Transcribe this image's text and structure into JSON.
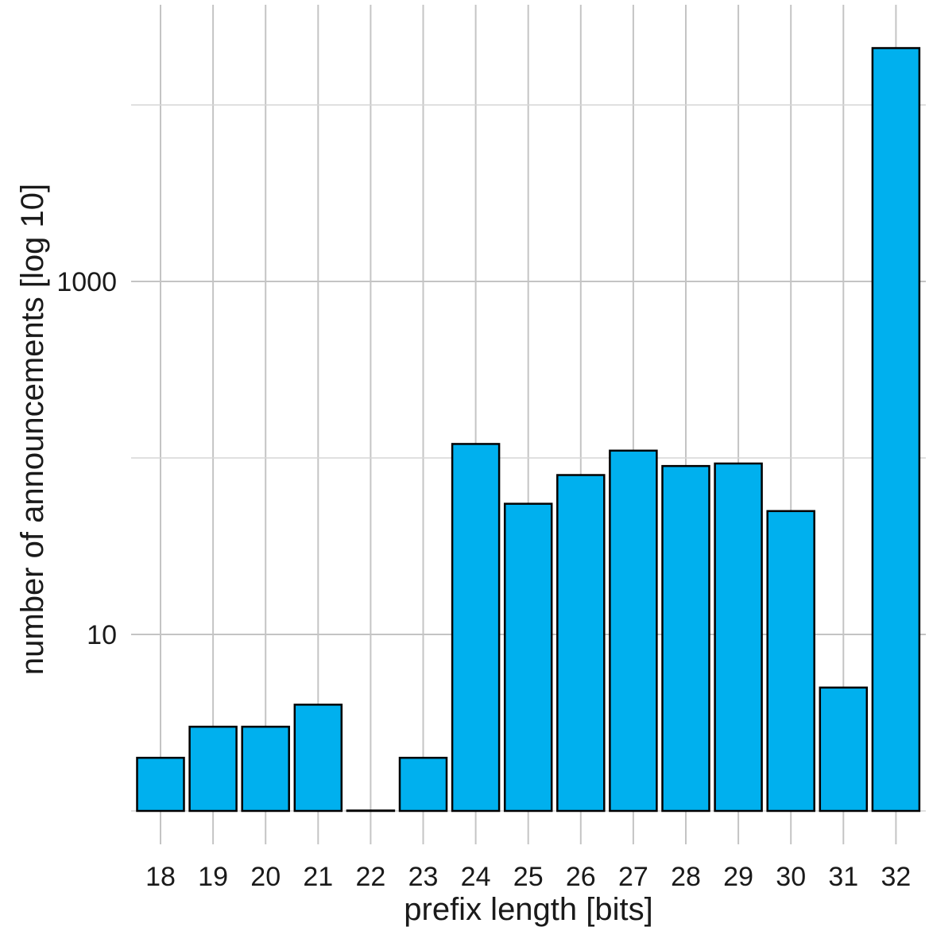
{
  "chart_data": {
    "type": "bar",
    "title": "",
    "xlabel": "prefix length [bits]",
    "ylabel": "number of announcements [log 10]",
    "y_scale": "log10",
    "ylim": [
      1,
      40000
    ],
    "y_major_ticks": [
      10,
      1000
    ],
    "y_tick_labels": [
      "10",
      "1000"
    ],
    "grid": true,
    "legend": "none",
    "bar_color": "#00b0ee",
    "bar_outline_color": "#000000",
    "categories": [
      "18",
      "19",
      "20",
      "21",
      "22",
      "23",
      "24",
      "25",
      "26",
      "27",
      "28",
      "29",
      "30",
      "31",
      "32"
    ],
    "values": [
      2,
      3,
      3,
      4,
      1,
      2,
      120,
      55,
      80,
      110,
      90,
      93,
      50,
      5,
      21000
    ]
  }
}
